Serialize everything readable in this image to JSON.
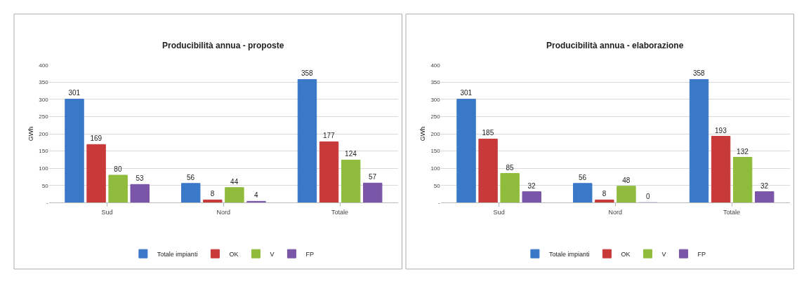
{
  "chart_data": [
    {
      "type": "bar",
      "title": "Producibilità annua - proposte",
      "ylabel": "GWh",
      "categories": [
        "Sud",
        "Nord",
        "Totale"
      ],
      "series": [
        {
          "name": "Totale impianti",
          "color": "#3a78c8",
          "values": [
            301,
            56,
            358
          ]
        },
        {
          "name": "OK",
          "color": "#c83a3a",
          "values": [
            169,
            8,
            177
          ]
        },
        {
          "name": "V",
          "color": "#8fbc3c",
          "values": [
            80,
            44,
            124
          ]
        },
        {
          "name": "FP",
          "color": "#7a55a8",
          "values": [
            53,
            4,
            57
          ]
        }
      ],
      "ylim": [
        0,
        400
      ],
      "yticks": [
        {
          "value": 0,
          "label": "-"
        },
        50,
        100,
        150,
        200,
        250,
        300,
        350,
        400
      ],
      "grid": "y",
      "legend": "bottom",
      "data_labels": true
    },
    {
      "type": "bar",
      "title": "Producibilità annua - elaborazione",
      "ylabel": "GWh",
      "categories": [
        "Sud",
        "Nord",
        "Totale"
      ],
      "series": [
        {
          "name": "Totale impianti",
          "color": "#3a78c8",
          "values": [
            301,
            56,
            358
          ]
        },
        {
          "name": "OK",
          "color": "#c83a3a",
          "values": [
            185,
            8,
            193
          ]
        },
        {
          "name": "V",
          "color": "#8fbc3c",
          "values": [
            85,
            48,
            132
          ]
        },
        {
          "name": "FP",
          "color": "#7a55a8",
          "values": [
            32,
            0,
            32
          ]
        }
      ],
      "ylim": [
        0,
        400
      ],
      "yticks": [
        {
          "value": 0,
          "label": "-"
        },
        50,
        100,
        150,
        200,
        250,
        300,
        350,
        400
      ],
      "grid": "y",
      "legend": "bottom",
      "data_labels": true
    }
  ]
}
